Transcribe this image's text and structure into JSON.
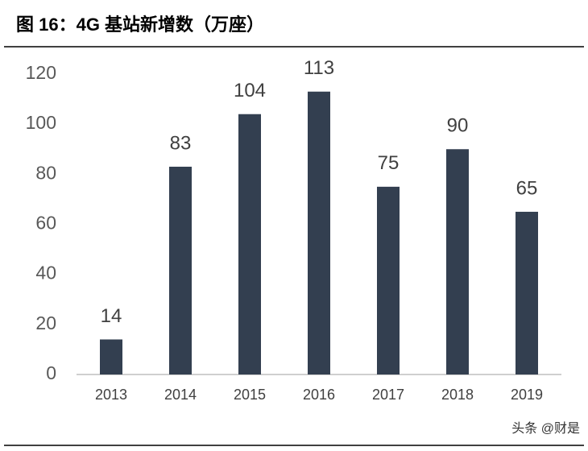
{
  "chart_data": {
    "type": "bar",
    "title": "图 16：4G 基站新增数（万座）",
    "categories": [
      "2013",
      "2014",
      "2015",
      "2016",
      "2017",
      "2018",
      "2019"
    ],
    "values": [
      14,
      83,
      104,
      113,
      75,
      90,
      65
    ],
    "color": "#333f50",
    "ylim": [
      0,
      120
    ],
    "yticks": [
      0,
      20,
      40,
      60,
      80,
      100,
      120
    ],
    "grid": false
  },
  "watermark": "头条 @财是"
}
